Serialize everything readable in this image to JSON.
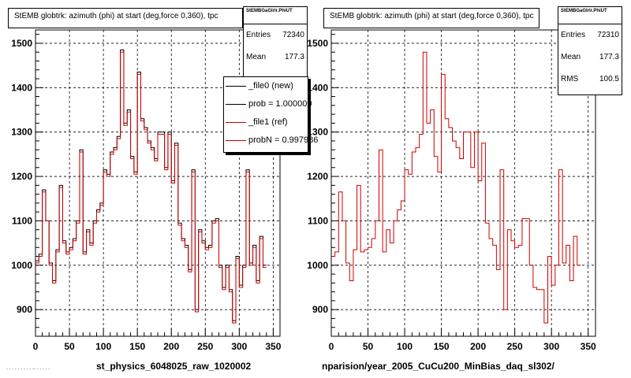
{
  "left_panel": {
    "title": "StEMB globtrk: azimuth (phi) at start (deg,force 0,360), tpc",
    "stats": {
      "name": "StEMBGaGlrlr.PhiUT",
      "entries_label": "Entries",
      "entries_value": "72340",
      "mean_label": "Mean",
      "mean_value": "177.3"
    },
    "legend": [
      {
        "label": "_file0 (new)",
        "color": "#000000"
      },
      {
        "label": "prob = 1.000000",
        "color": "#000000"
      },
      {
        "label": "_file1 (ref)",
        "color": "#cc0000"
      },
      {
        "label": "probN = 0.997986",
        "color": "#cc0000"
      }
    ],
    "xlabel": "st_physics_6048025_raw_1020002"
  },
  "right_panel": {
    "title": "StEMB globtrk: azimuth (phi) at start (deg,force 0,360), tpc",
    "stats": {
      "name": "StEMBGaGlrlr.PhiUT",
      "entries_label": "Entries",
      "entries_value": "72310",
      "mean_label": "Mean",
      "mean_value": "177.3",
      "rms_label": "RMS",
      "rms_value": "100.5"
    },
    "xlabel": "nparision/year_2005_CuCu200_MinBias_daq_sl302/"
  },
  "footer": "- - -  - -  - -  - - -- - - - - -",
  "chart_data": [
    {
      "type": "histogram",
      "xlim": [
        0,
        360
      ],
      "ylim": [
        840,
        1530
      ],
      "xticks": [
        0,
        50,
        100,
        150,
        200,
        250,
        300,
        350
      ],
      "yticks": [
        900,
        1000,
        1100,
        1200,
        1300,
        1400,
        1500
      ],
      "grid": true,
      "bin_width": 5,
      "series": [
        {
          "name": "_file0 (new)",
          "color": "#000000",
          "values": [
            1010,
            1025,
            1170,
            1100,
            1005,
            965,
            1035,
            1180,
            1055,
            1030,
            1040,
            1060,
            1100,
            1260,
            1030,
            1080,
            1050,
            1100,
            1125,
            1140,
            1215,
            1205,
            1255,
            1265,
            1290,
            1485,
            1320,
            1350,
            1245,
            1210,
            1435,
            1330,
            1310,
            1280,
            1265,
            1240,
            1300,
            1300,
            1220,
            1300,
            1190,
            1275,
            1095,
            1060,
            1045,
            990,
            1215,
            900,
            1080,
            1055,
            1040,
            1045,
            1100,
            1105,
            1000,
            950,
            1000,
            945,
            875,
            1020,
            955,
            1000,
            1215,
            1005,
            1045,
            965,
            1065,
            1000
          ]
        },
        {
          "name": "_file1 (ref)",
          "color": "#cc0000",
          "values": [
            1005,
            1020,
            1165,
            1100,
            1000,
            960,
            1030,
            1175,
            1050,
            1025,
            1035,
            1055,
            1095,
            1255,
            1025,
            1075,
            1045,
            1095,
            1120,
            1135,
            1210,
            1200,
            1250,
            1260,
            1285,
            1480,
            1315,
            1345,
            1240,
            1205,
            1430,
            1325,
            1305,
            1275,
            1260,
            1235,
            1295,
            1295,
            1215,
            1295,
            1185,
            1270,
            1090,
            1055,
            1040,
            985,
            1210,
            895,
            1075,
            1050,
            1035,
            1040,
            1095,
            1100,
            995,
            945,
            995,
            940,
            870,
            1015,
            950,
            995,
            1210,
            1000,
            1040,
            960,
            1060,
            995
          ]
        }
      ]
    },
    {
      "type": "histogram",
      "xlim": [
        0,
        360
      ],
      "ylim": [
        840,
        1530
      ],
      "xticks": [
        0,
        50,
        100,
        150,
        200,
        250,
        300,
        350
      ],
      "yticks": [
        900,
        1000,
        1100,
        1200,
        1300,
        1400,
        1500
      ],
      "grid": true,
      "bin_width": 5,
      "series": [
        {
          "name": "",
          "color": "#cc0000",
          "values": [
            1020,
            1030,
            1165,
            1100,
            1005,
            965,
            1035,
            1180,
            1030,
            1035,
            1040,
            1060,
            1100,
            1260,
            1030,
            1080,
            1050,
            1100,
            1125,
            1145,
            1215,
            1205,
            1255,
            1265,
            1295,
            1480,
            1320,
            1350,
            1245,
            1210,
            1430,
            1330,
            1310,
            1280,
            1265,
            1240,
            1300,
            1300,
            1220,
            1300,
            1190,
            1275,
            1095,
            1060,
            1045,
            990,
            1215,
            900,
            1080,
            1055,
            1040,
            1045,
            1105,
            1105,
            1000,
            950,
            945,
            945,
            870,
            1020,
            955,
            1000,
            1215,
            1005,
            1045,
            965,
            1065,
            1000
          ]
        }
      ]
    }
  ]
}
